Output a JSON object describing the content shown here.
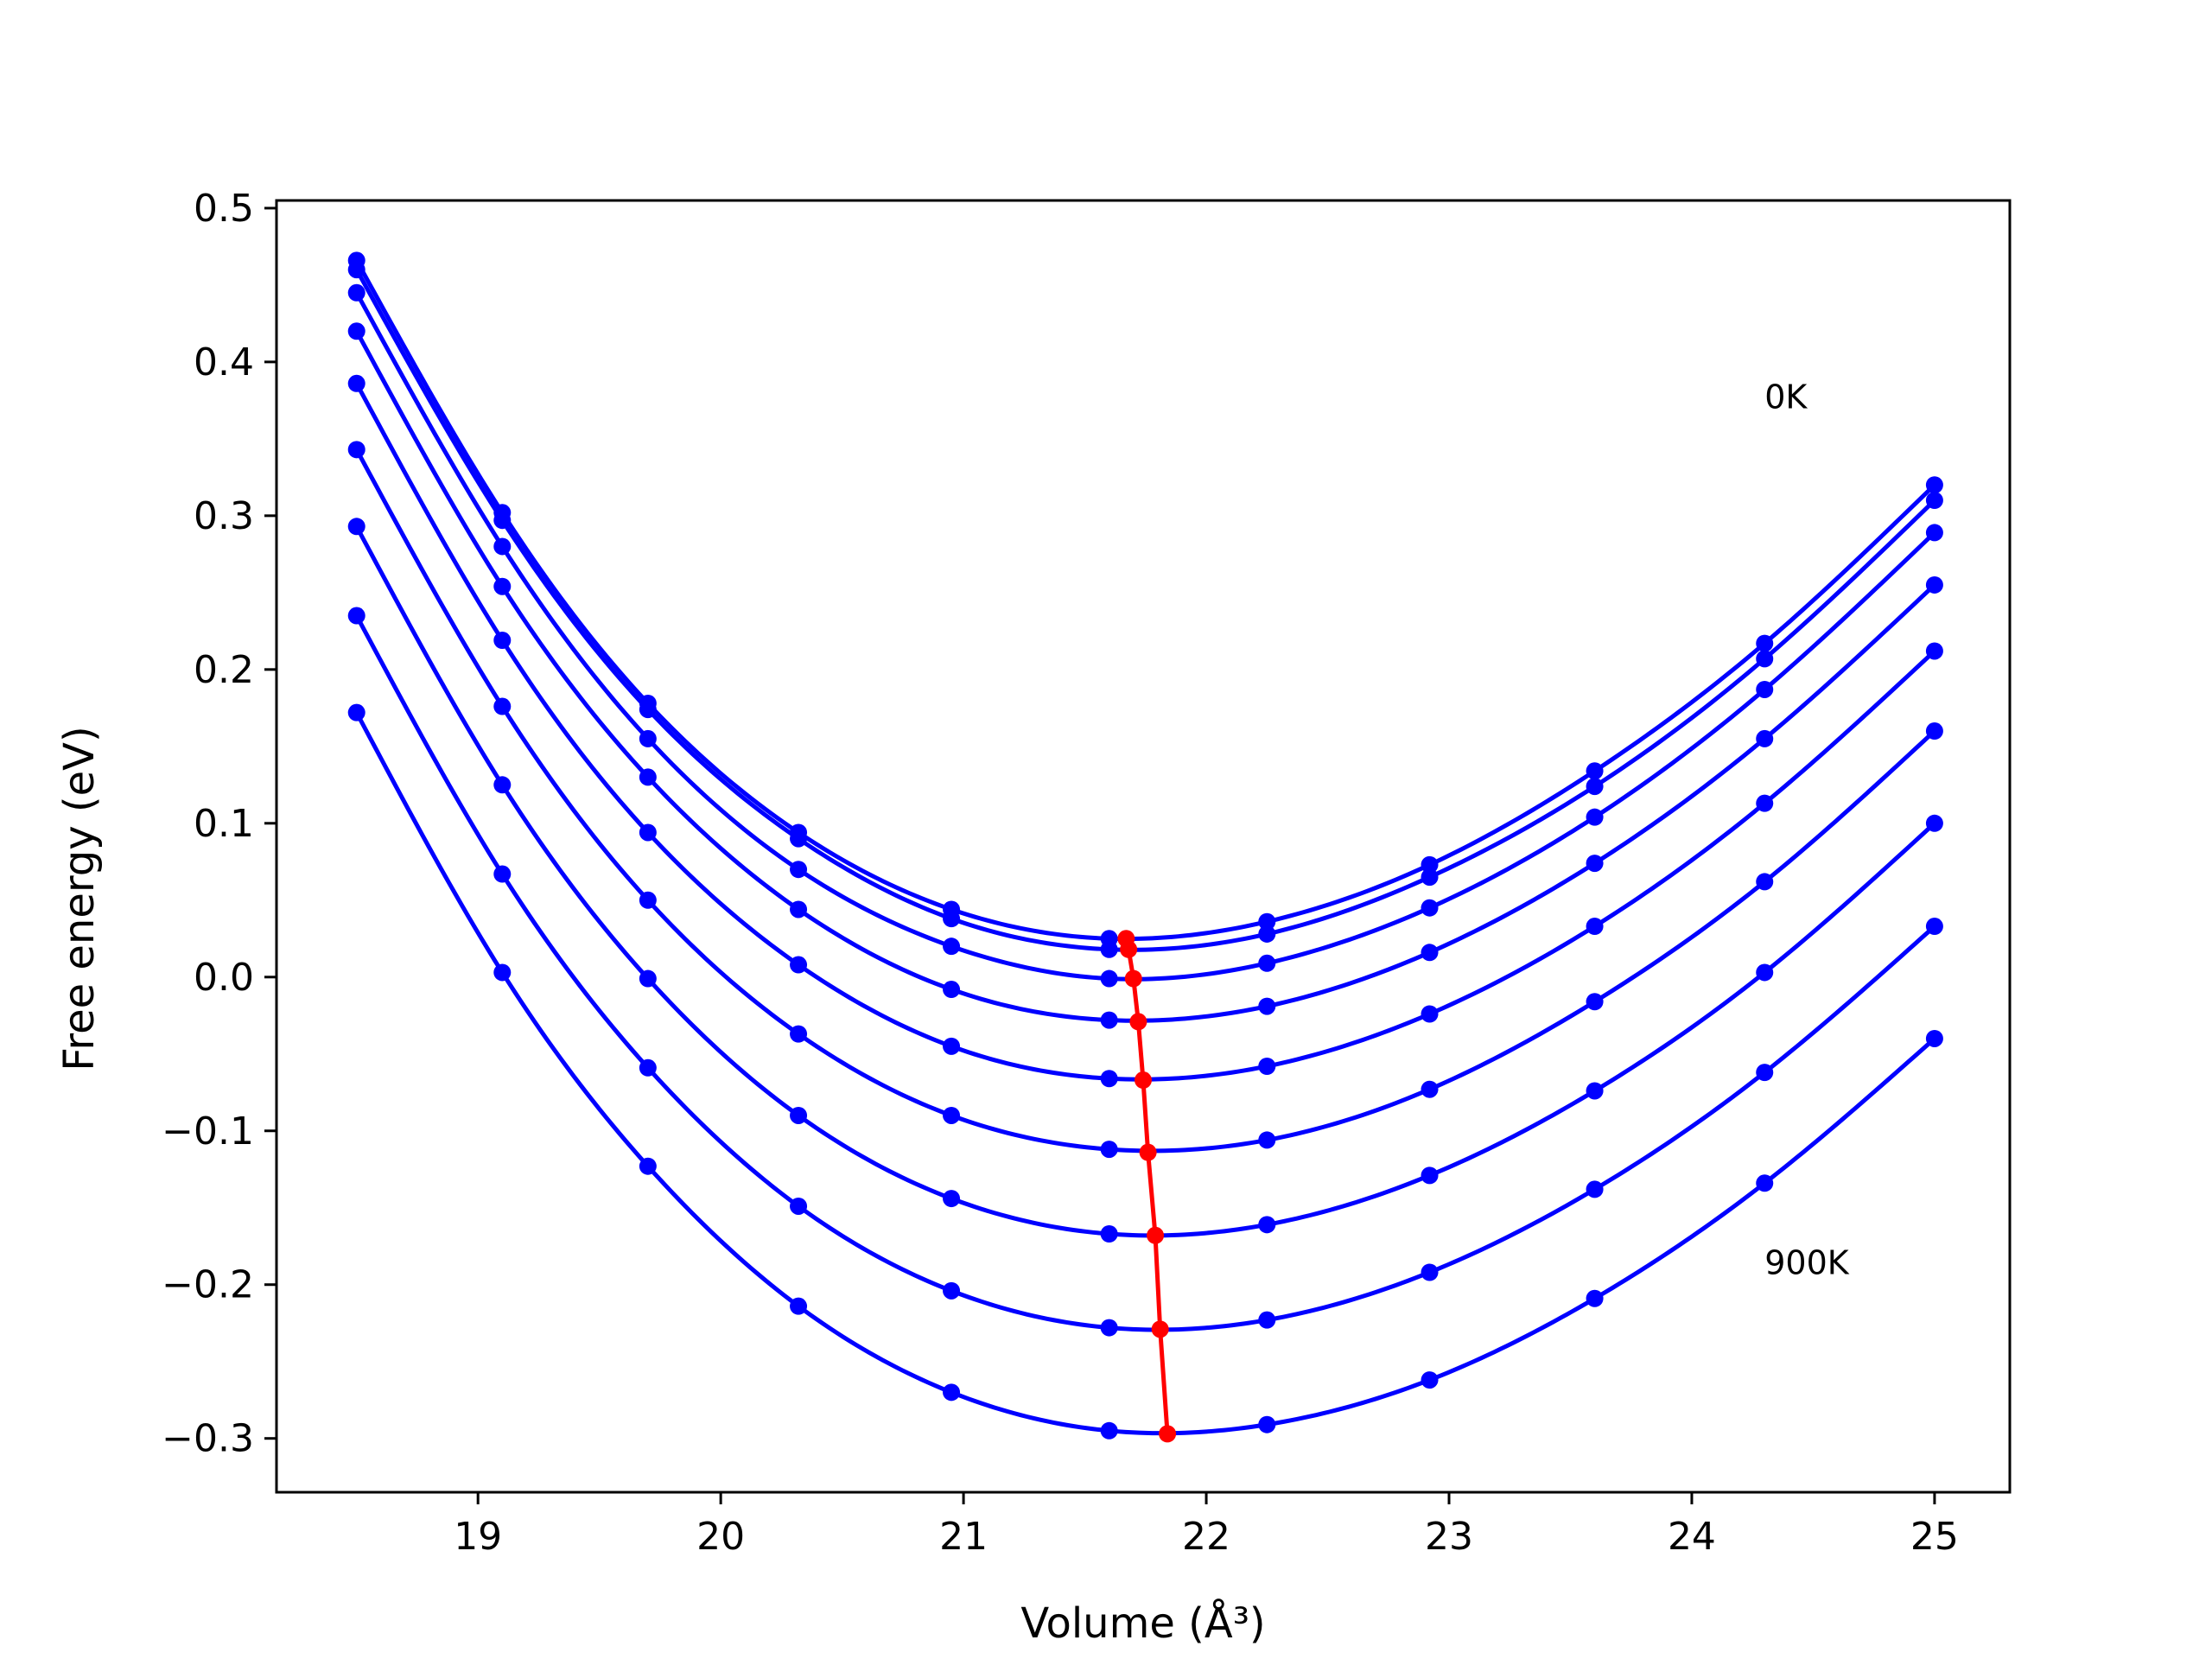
{
  "chart_data": {
    "type": "line",
    "xlabel": "Volume (Å³)",
    "ylabel": "Free energy (eV)",
    "xlim": [
      18.17,
      25.31
    ],
    "ylim": [
      -0.335,
      0.505
    ],
    "xticks": [
      19,
      20,
      21,
      22,
      23,
      24,
      25
    ],
    "yticks": [
      -0.3,
      -0.2,
      -0.1,
      0.0,
      0.1,
      0.2,
      0.3,
      0.4,
      0.5
    ],
    "ytick_labels": [
      "−0.3",
      "−0.2",
      "−0.1",
      "0.0",
      "0.1",
      "0.2",
      "0.3",
      "0.4",
      "0.5"
    ],
    "grid": false,
    "x": [
      18.5,
      19.1,
      19.7,
      20.32,
      20.95,
      21.6,
      22.25,
      22.92,
      23.6,
      24.3,
      25.0
    ],
    "series": [
      {
        "values": [
          0.466,
          0.302,
          0.178,
          0.094,
          0.044,
          0.025,
          0.036,
          0.073,
          0.134,
          0.217,
          0.32
        ]
      },
      {
        "values": [
          0.46,
          0.297,
          0.174,
          0.09,
          0.038,
          0.018,
          0.028,
          0.065,
          0.124,
          0.207,
          0.31
        ]
      },
      {
        "values": [
          0.445,
          0.28,
          0.155,
          0.07,
          0.02,
          -0.001,
          0.009,
          0.045,
          0.104,
          0.187,
          0.289
        ]
      },
      {
        "values": [
          0.42,
          0.254,
          0.13,
          0.044,
          -0.008,
          -0.028,
          -0.019,
          0.016,
          0.074,
          0.155,
          0.255
        ]
      },
      {
        "values": [
          0.386,
          0.219,
          0.094,
          0.008,
          -0.045,
          -0.066,
          -0.058,
          -0.024,
          0.033,
          0.113,
          0.212
        ]
      },
      {
        "values": [
          0.343,
          0.176,
          0.05,
          -0.037,
          -0.09,
          -0.112,
          -0.106,
          -0.073,
          -0.016,
          0.062,
          0.16
        ]
      },
      {
        "values": [
          0.293,
          0.125,
          -0.001,
          -0.09,
          -0.144,
          -0.167,
          -0.161,
          -0.129,
          -0.074,
          0.003,
          0.1
        ]
      },
      {
        "values": [
          0.235,
          0.067,
          -0.059,
          -0.149,
          -0.204,
          -0.228,
          -0.223,
          -0.192,
          -0.138,
          -0.062,
          0.033
        ]
      },
      {
        "values": [
          0.172,
          0.003,
          -0.123,
          -0.214,
          -0.27,
          -0.295,
          -0.291,
          -0.262,
          -0.209,
          -0.134,
          -0.04
        ]
      }
    ],
    "minima": {
      "x": [
        21.67,
        21.68,
        21.7,
        21.72,
        21.74,
        21.76,
        21.79,
        21.81,
        21.84
      ],
      "y": [
        0.025,
        0.018,
        -0.001,
        -0.029,
        -0.067,
        -0.114,
        -0.168,
        -0.229,
        -0.297
      ]
    },
    "annotations": [
      {
        "text": "0K",
        "x": 24.3,
        "y": 0.37
      },
      {
        "text": "900K",
        "x": 24.3,
        "y": -0.193
      }
    ],
    "colors": {
      "curves": "#0000ff",
      "minima": "#ff0000",
      "axes": "#000000"
    }
  }
}
